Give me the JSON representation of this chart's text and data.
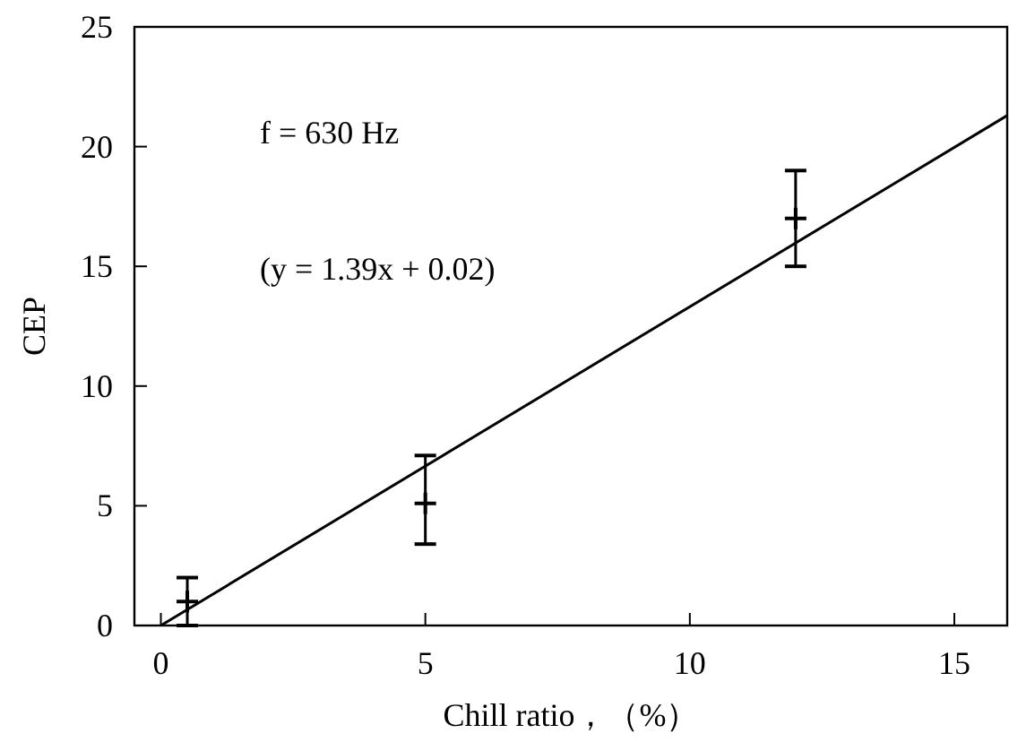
{
  "chart_data": {
    "type": "scatter",
    "xlabel": "Chill ratio，（%）",
    "ylabel": "CEP",
    "series": [
      {
        "color": "#000000",
        "x": [
          0.5,
          5,
          12
        ],
        "values": [
          1.0,
          5.1,
          17.0
        ],
        "errors": [
          [
            0,
            2
          ],
          [
            3.4,
            7.1
          ],
          [
            15,
            19
          ]
        ]
      },
      {
        "type": "line",
        "color": "#000000",
        "x": [
          0,
          16
        ],
        "values": [
          0,
          21.3
        ],
        "line_style": "solid"
      }
    ],
    "annotations": [
      "f = 630 Hz",
      "(y = 1.39x + 0.02)"
    ],
    "xlim": [
      -0.5,
      16
    ],
    "ylim": [
      0,
      25
    ],
    "xticks": [
      0,
      5,
      10,
      15
    ],
    "yticks": [
      0,
      5,
      10,
      15,
      20,
      25
    ],
    "grid": false
  }
}
